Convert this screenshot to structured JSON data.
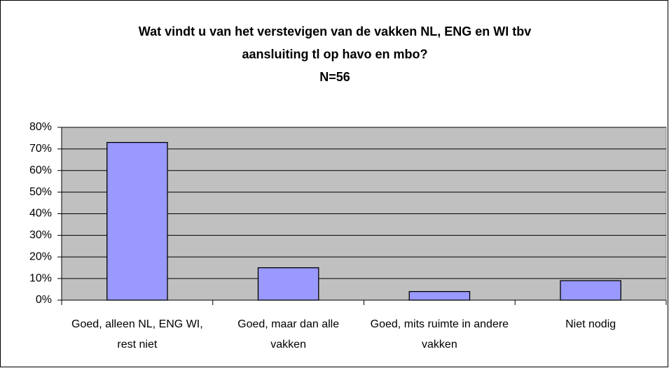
{
  "chart_data": {
    "type": "bar",
    "title": [
      "Wat vindt u van het verstevigen van de vakken NL, ENG en WI tbv",
      "aansluiting tl op havo en mbo?",
      "N=56"
    ],
    "categories": [
      "Goed, alleen NL, ENG WI, rest niet",
      "Goed, maar dan alle vakken",
      "Goed, mits ruimte in andere vakken",
      "Niet nodig"
    ],
    "values": [
      73,
      15,
      4,
      9
    ],
    "color": "#9999ff",
    "ylim": [
      0,
      80
    ],
    "yticks": [
      {
        "value": 0,
        "label": "0%"
      },
      {
        "value": 10,
        "label": "10%"
      },
      {
        "value": 20,
        "label": "20%"
      },
      {
        "value": 30,
        "label": "30%"
      },
      {
        "value": 40,
        "label": "40%"
      },
      {
        "value": 50,
        "label": "50%"
      },
      {
        "value": 60,
        "label": "60%"
      },
      {
        "value": 70,
        "label": "70%"
      },
      {
        "value": 80,
        "label": "80%"
      }
    ],
    "grid": true
  }
}
